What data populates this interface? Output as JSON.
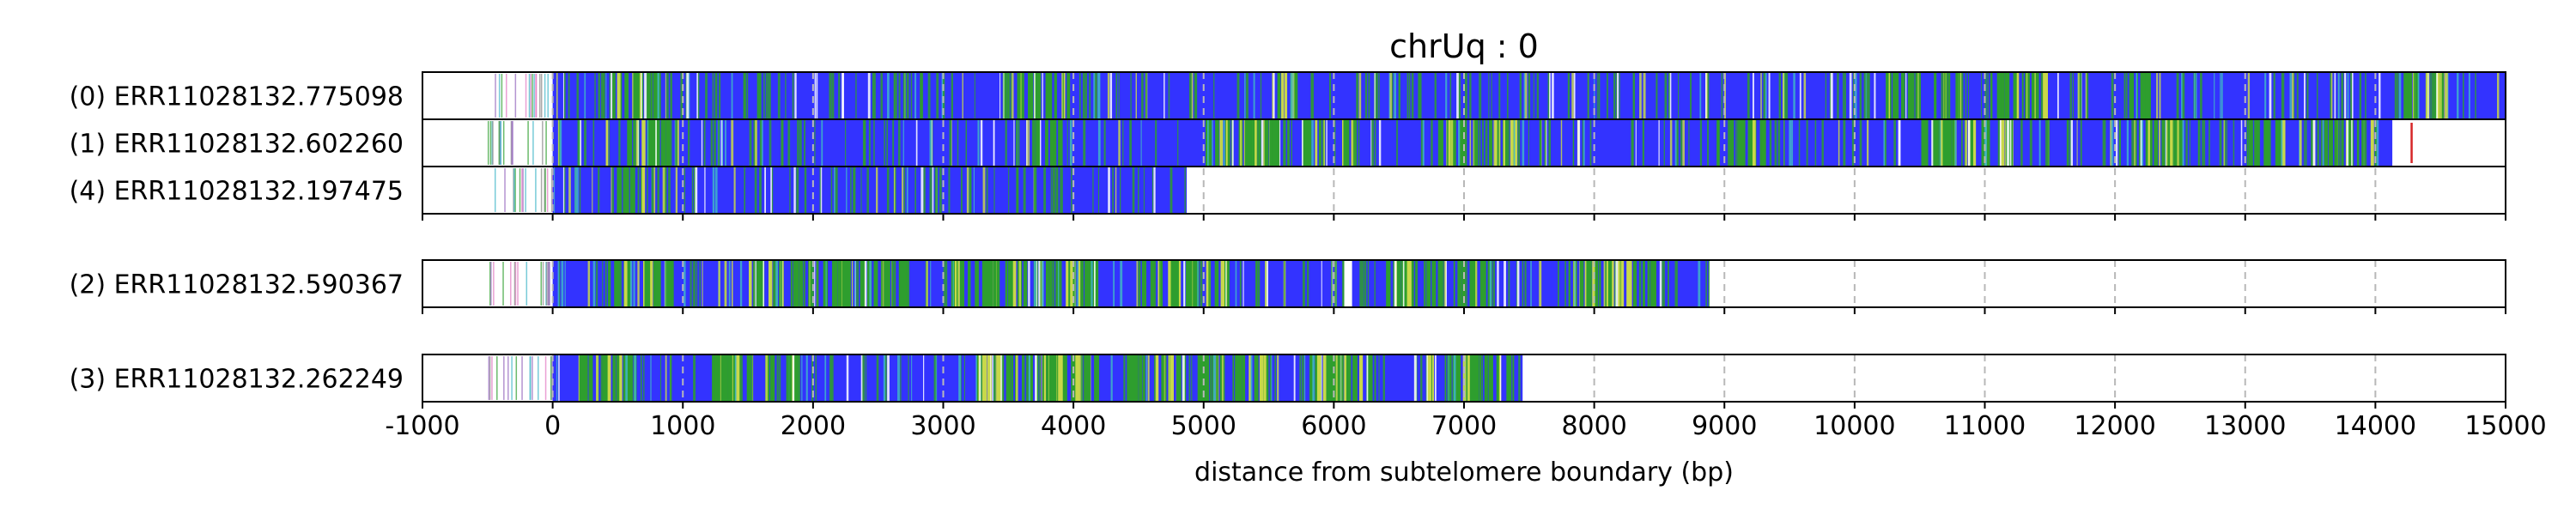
{
  "chart_data": {
    "type": "table",
    "title": "chrUq : 0",
    "xlabel": "distance from subtelomere boundary (bp)",
    "xlim": [
      -1000,
      15000
    ],
    "xticks": [
      -1000,
      0,
      1000,
      2000,
      3000,
      4000,
      5000,
      6000,
      7000,
      8000,
      9000,
      10000,
      11000,
      12000,
      13000,
      14000,
      15000
    ],
    "grid": "x-dashed",
    "colors": {
      "main": "#3333ff",
      "green": "#2e9e2e",
      "yellow": "#c8d84a",
      "cyan": "#3fb5c8",
      "red": "#d62728",
      "pink": "#e377c2",
      "purple": "#9467bd",
      "grey": "#888888"
    },
    "groups": [
      {
        "reads": [
          {
            "label": "(0) ERR11028132.775098",
            "start": -500,
            "end": 15000,
            "green_regions": [
              [
                450,
                850
              ],
              [
                3450,
                3950
              ],
              [
                5500,
                5700
              ],
              [
                10200,
                10500
              ],
              [
                10600,
                10800
              ],
              [
                11000,
                11500
              ],
              [
                12100,
                12300
              ],
              [
                14200,
                14500
              ]
            ]
          },
          {
            "label": "(1) ERR11028132.602260",
            "start": -500,
            "end": 14130,
            "green_regions": [
              [
                400,
                900
              ],
              [
                3700,
                3900
              ],
              [
                5000,
                6200
              ],
              [
                6800,
                7400
              ],
              [
                8900,
                9300
              ],
              [
                10500,
                11200
              ],
              [
                12200,
                12500
              ],
              [
                13000,
                13300
              ],
              [
                13600,
                14000
              ]
            ],
            "marks": [
              {
                "x": 14270,
                "color": "red"
              }
            ]
          },
          {
            "label": "(4) ERR11028132.197475",
            "start": -500,
            "end": 4870,
            "green_regions": [
              [
                450,
                750
              ]
            ]
          }
        ]
      },
      {
        "reads": [
          {
            "label": "(2) ERR11028132.590367",
            "start": -500,
            "end": 8880,
            "green_regions": [
              [
                400,
                900
              ],
              [
                1500,
                2700
              ],
              [
                3000,
                4200
              ],
              [
                4500,
                5200
              ],
              [
                6400,
                7200
              ],
              [
                7800,
                8500
              ]
            ],
            "gaps": [
              [
                6080,
                6140
              ]
            ]
          }
        ]
      },
      {
        "reads": [
          {
            "label": "(3) ERR11028132.262249",
            "start": -500,
            "end": 7450,
            "green_regions": [
              [
                200,
                700
              ],
              [
                1200,
                1900
              ],
              [
                3200,
                4200
              ],
              [
                4400,
                5500
              ],
              [
                5800,
                6400
              ],
              [
                6700,
                7400
              ]
            ]
          }
        ]
      }
    ]
  }
}
